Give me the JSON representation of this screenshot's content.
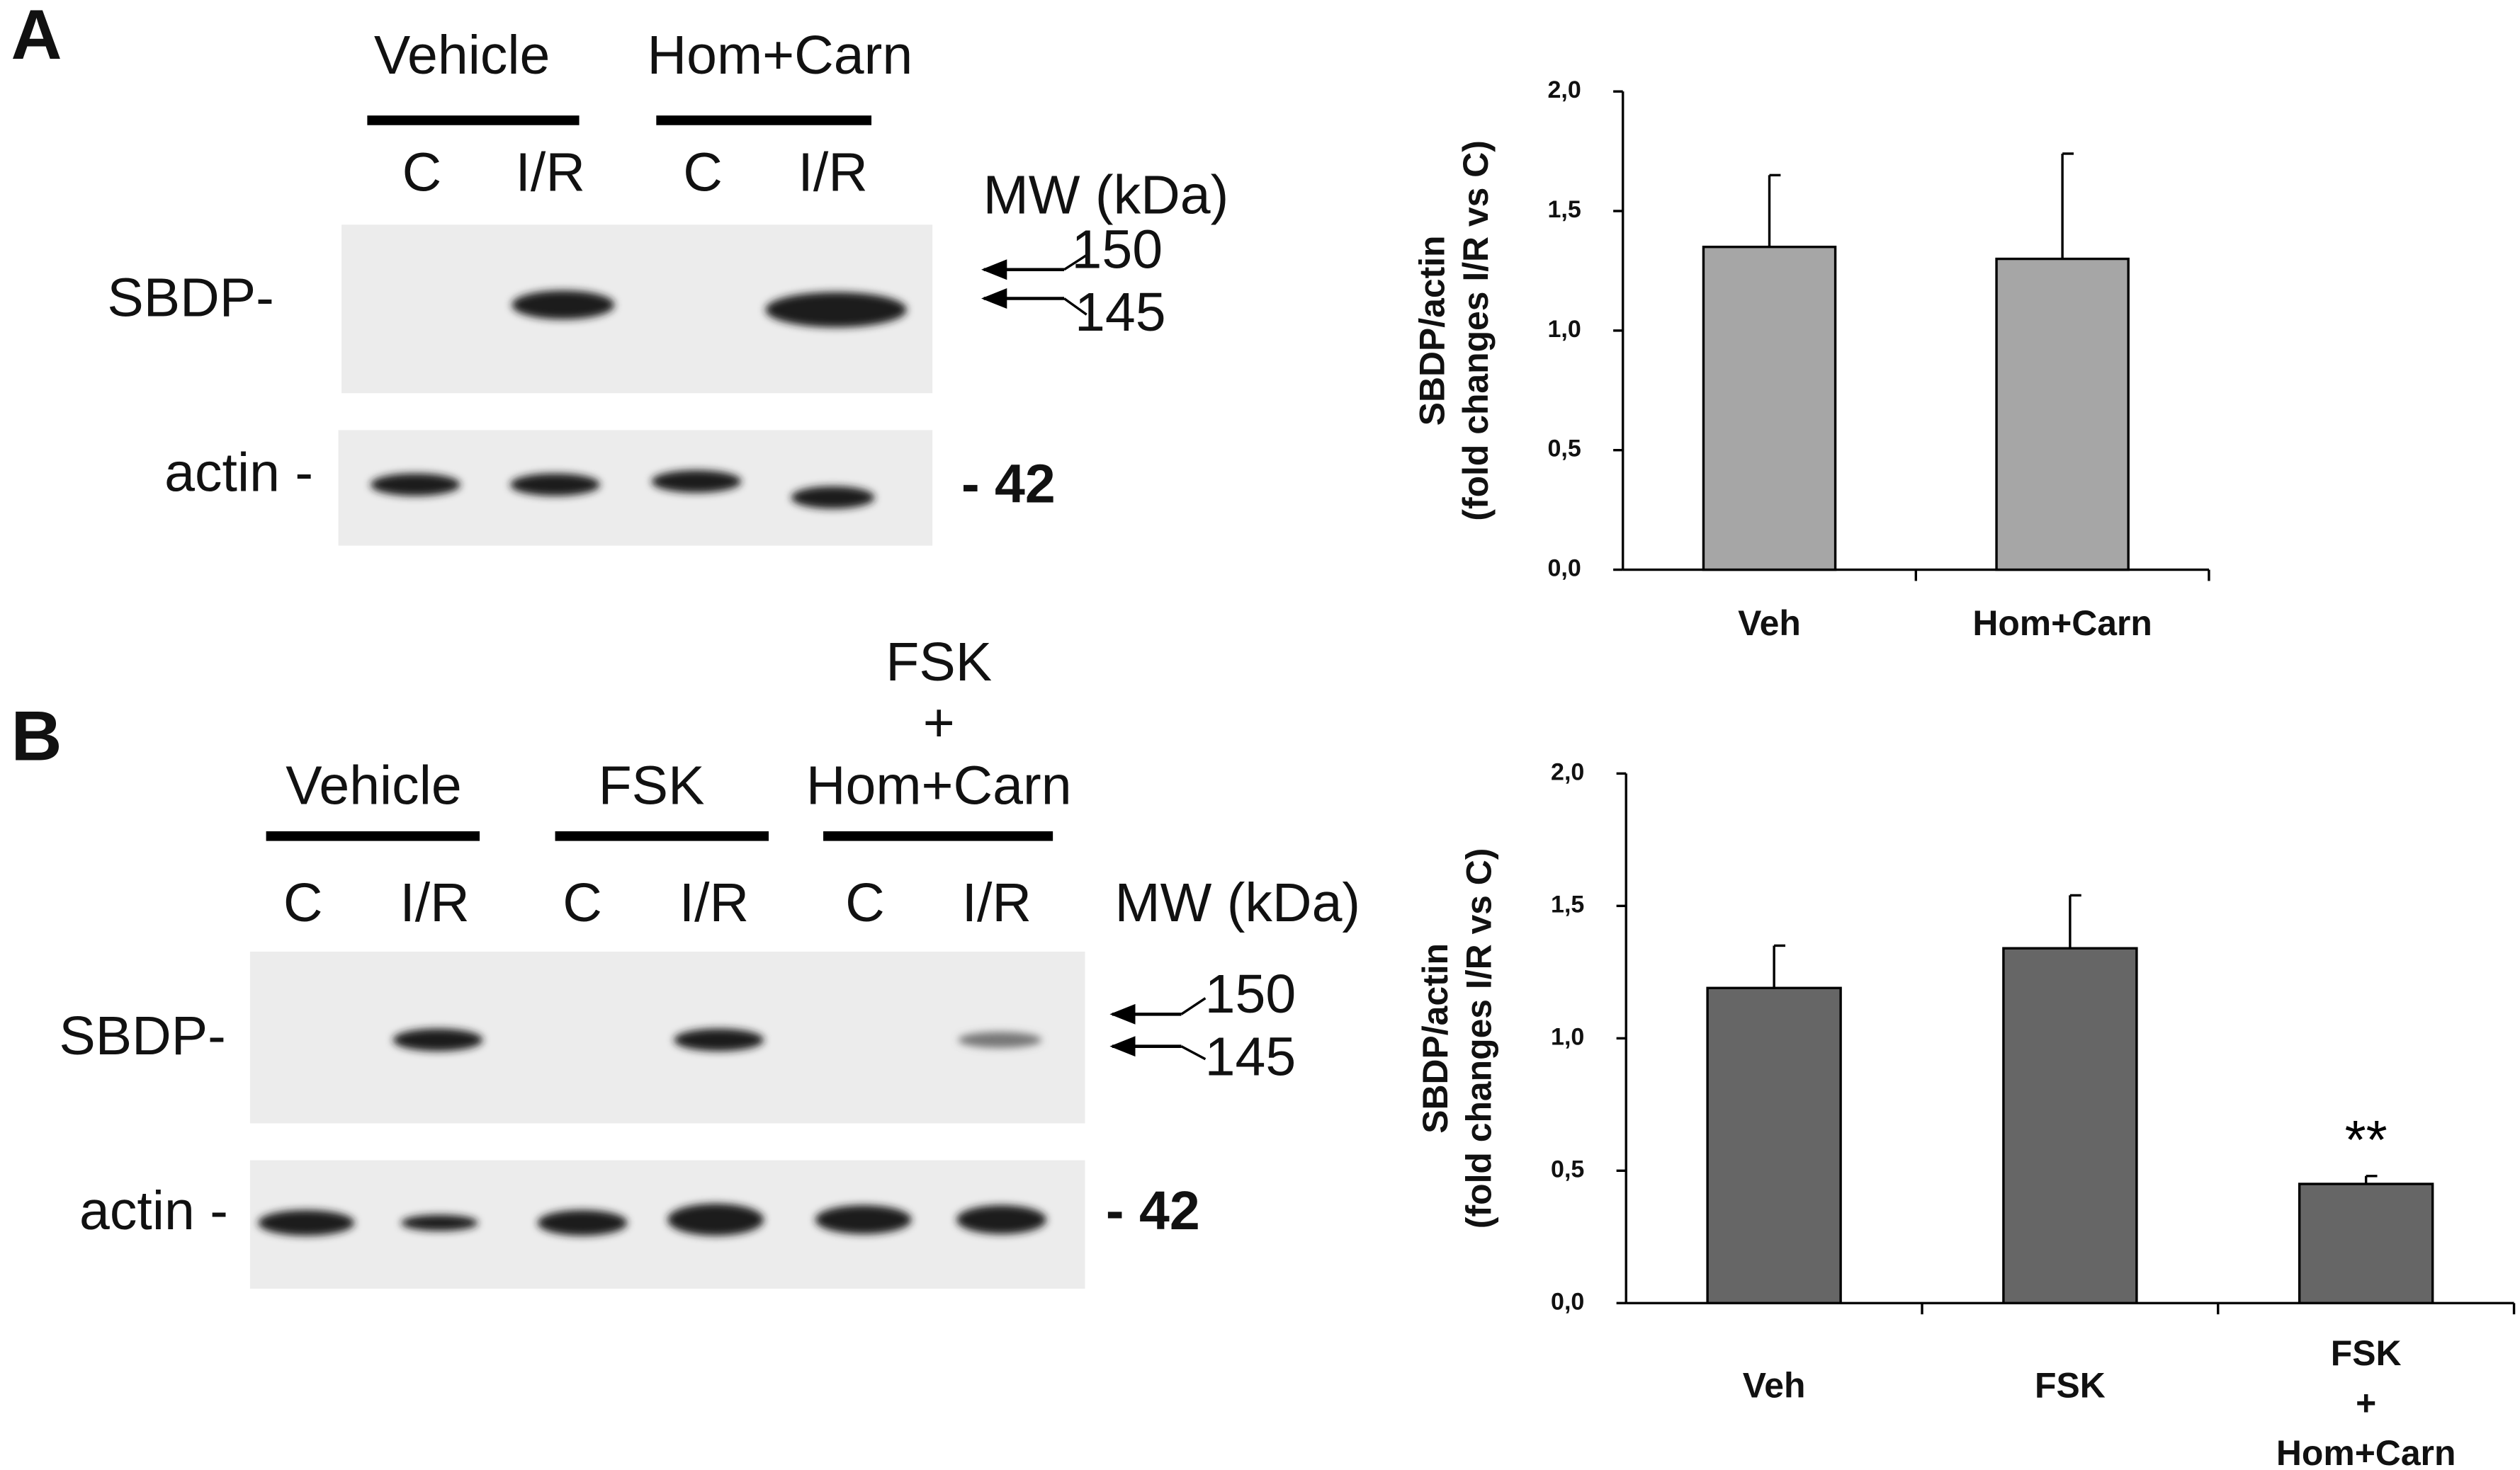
{
  "blots": [
    {
      "panel": "A",
      "groups": [
        "Vehicle",
        "Hom+Carn"
      ],
      "lanes": [
        "C",
        "I/R",
        "C",
        "I/R"
      ],
      "mw_label": "MW (kDa)",
      "rows": [
        "SBDP-",
        "actin -"
      ],
      "markers": [
        "150",
        "145",
        "- 42"
      ]
    },
    {
      "panel": "B",
      "groups": [
        "Vehicle",
        "FSK",
        [
          "FSK",
          "+",
          "Hom+Carn"
        ]
      ],
      "lanes": [
        "C",
        "I/R",
        "C",
        "I/R",
        "C",
        "I/R"
      ],
      "mw_label": "MW (kDa)",
      "rows": [
        "SBDP-",
        "actin -"
      ],
      "markers": [
        "150",
        "145",
        "- 42"
      ]
    }
  ],
  "chart_data": [
    {
      "type": "bar",
      "ylabel": [
        "SBDP/actin",
        "(fold changes I/R vs C)"
      ],
      "categories": [
        "Veh",
        "Hom+Carn"
      ],
      "values": [
        1.35,
        1.3
      ],
      "errors": [
        0.3,
        0.44
      ],
      "color": "#a6a6a6",
      "ylim": [
        0,
        2
      ],
      "yticks": [
        {
          "value": 0,
          "label": "0,0"
        },
        {
          "value": 0.5,
          "label": "0,5"
        },
        {
          "value": 1,
          "label": "1,0"
        },
        {
          "value": 1.5,
          "label": "1,5"
        },
        {
          "value": 2,
          "label": "2,0"
        }
      ]
    },
    {
      "type": "bar",
      "ylabel": [
        "SBDP/actin",
        "(fold changes I/R vs C)"
      ],
      "categories": [
        "Veh",
        "FSK",
        [
          "FSK",
          "+",
          "Hom+Carn"
        ]
      ],
      "values": [
        1.19,
        1.34,
        0.45
      ],
      "errors": [
        0.16,
        0.2,
        0.03
      ],
      "color": "#666666",
      "annotation": "**",
      "ylim": [
        0,
        2
      ],
      "yticks": [
        {
          "value": 0,
          "label": "0,0"
        },
        {
          "value": 0.5,
          "label": "0,5"
        },
        {
          "value": 1,
          "label": "1,0"
        },
        {
          "value": 1.5,
          "label": "1,5"
        },
        {
          "value": 2,
          "label": "2,0"
        }
      ]
    }
  ]
}
